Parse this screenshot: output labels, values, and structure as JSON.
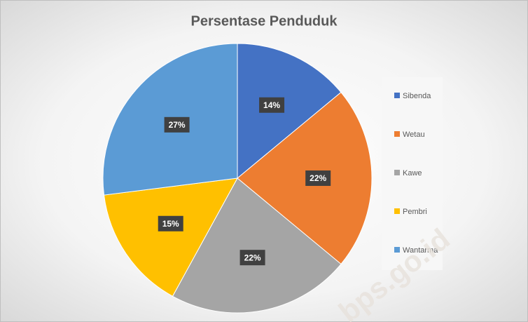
{
  "chart_data": {
    "type": "pie",
    "title": "Persentase Penduduk",
    "categories": [
      "Sibenda",
      "Wetau",
      "Kawe",
      "Pembri",
      "Wantarma"
    ],
    "values": [
      14,
      22,
      22,
      15,
      27
    ],
    "value_labels": [
      "14%",
      "22%",
      "22%",
      "15%",
      "27%"
    ],
    "colors": [
      "#4472c4",
      "#ed7d31",
      "#a5a5a5",
      "#ffc000",
      "#5b9bd5"
    ],
    "legend": "right",
    "watermark": "bps.go.id"
  }
}
